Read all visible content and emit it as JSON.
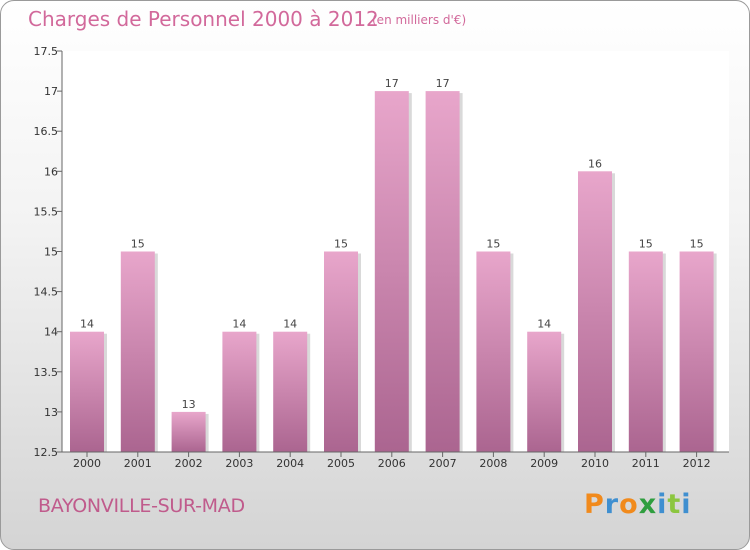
{
  "header": {
    "title": "Charges de Personnel 2000 à 2012",
    "subtitle": "(en milliers d'€)"
  },
  "footer": {
    "commune": "BAYONVILLE-SUR-MAD",
    "logo_text": "Proxiti"
  },
  "colors": {
    "bar_top": "#e8a6cb",
    "bar_bottom": "#ab6590",
    "title": "#d2699b",
    "logo_letters": [
      "#f18a1c",
      "#3f8fd0",
      "#f18a1c",
      "#2f9e3f",
      "#3f8fd0",
      "#8cc63f",
      "#3f8fd0"
    ]
  },
  "chart_data": {
    "type": "bar",
    "title": "Charges de Personnel 2000 à 2012",
    "subtitle": "(en milliers d'€)",
    "categories": [
      "2000",
      "2001",
      "2002",
      "2003",
      "2004",
      "2005",
      "2006",
      "2007",
      "2008",
      "2009",
      "2010",
      "2011",
      "2012"
    ],
    "values": [
      14,
      15,
      13,
      14,
      14,
      15,
      17,
      17,
      15,
      14,
      16,
      15,
      15
    ],
    "data_labels": [
      "14",
      "15",
      "13",
      "14",
      "14",
      "15",
      "17",
      "17",
      "15",
      "14",
      "16",
      "15",
      "15"
    ],
    "ylim": [
      12.5,
      17.5
    ],
    "yticks": [
      12.5,
      13,
      13.5,
      14,
      14.5,
      15,
      15.5,
      16,
      16.5,
      17,
      17.5
    ],
    "ytick_labels": [
      "12.5",
      "13",
      "13.5",
      "14",
      "14.5",
      "15",
      "15.5",
      "16",
      "16.5",
      "17",
      "17.5"
    ],
    "xlabel": "",
    "ylabel": "",
    "grid": false,
    "legend": "none"
  }
}
